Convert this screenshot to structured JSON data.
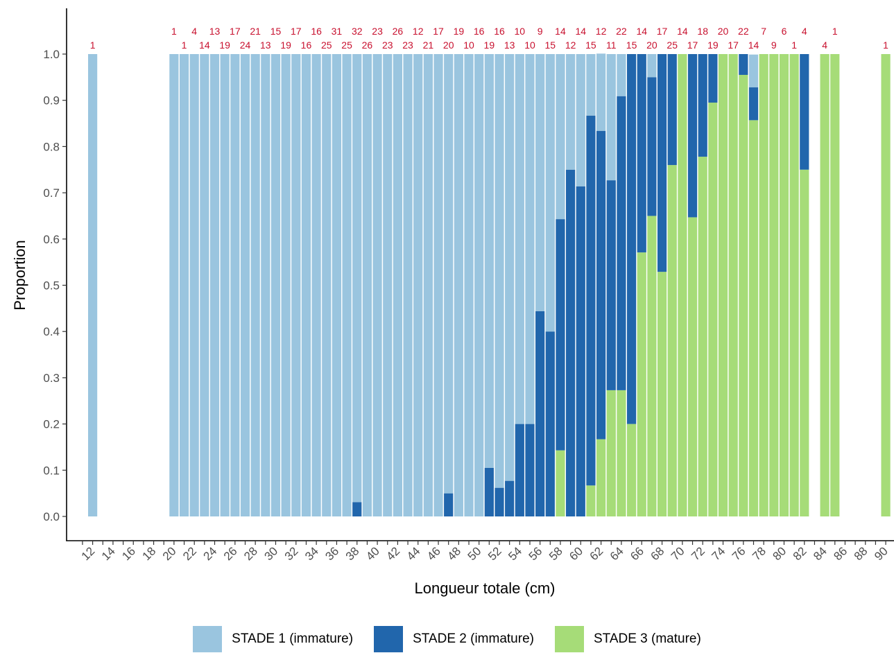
{
  "chart_data": {
    "type": "bar",
    "stacked": true,
    "xlabel": "Longueur totale (cm)",
    "ylabel": "Proportion",
    "ylim": [
      0,
      1
    ],
    "xlim": [
      11,
      90
    ],
    "y_ticks": [
      0.0,
      0.1,
      0.2,
      0.3,
      0.4,
      0.5,
      0.6,
      0.7,
      0.8,
      0.9,
      1.0
    ],
    "y_tick_labels": [
      "0.0",
      "0.1",
      "0.2",
      "0.3",
      "0.4",
      "0.5",
      "0.6",
      "0.7",
      "0.8",
      "0.9",
      "1.0"
    ],
    "x_ticks": [
      12,
      14,
      16,
      18,
      20,
      22,
      24,
      26,
      28,
      30,
      32,
      34,
      36,
      38,
      40,
      42,
      44,
      46,
      48,
      50,
      52,
      54,
      56,
      58,
      60,
      62,
      64,
      66,
      68,
      70,
      72,
      74,
      76,
      78,
      80,
      82,
      84,
      86,
      88,
      90
    ],
    "legend_position": "bottom",
    "grid": false,
    "series": [
      {
        "name": "STADE 1 (immature)",
        "color": "#9ac5df"
      },
      {
        "name": "STADE 2 (immature)",
        "color": "#2166ac"
      },
      {
        "name": "STADE 3 (mature)",
        "color": "#a6dc78"
      }
    ],
    "bars": [
      {
        "x": 12,
        "n": 1,
        "s1": 1.0,
        "s2": 0.0,
        "s3": 0.0
      },
      {
        "x": 20,
        "n": 1,
        "s1": 1.0,
        "s2": 0.0,
        "s3": 0.0
      },
      {
        "x": 21,
        "n": 1,
        "s1": 1.0,
        "s2": 0.0,
        "s3": 0.0
      },
      {
        "x": 22,
        "n": 4,
        "s1": 1.0,
        "s2": 0.0,
        "s3": 0.0
      },
      {
        "x": 23,
        "n": 14,
        "s1": 1.0,
        "s2": 0.0,
        "s3": 0.0
      },
      {
        "x": 24,
        "n": 13,
        "s1": 1.0,
        "s2": 0.0,
        "s3": 0.0
      },
      {
        "x": 25,
        "n": 19,
        "s1": 1.0,
        "s2": 0.0,
        "s3": 0.0
      },
      {
        "x": 26,
        "n": 17,
        "s1": 1.0,
        "s2": 0.0,
        "s3": 0.0
      },
      {
        "x": 27,
        "n": 24,
        "s1": 1.0,
        "s2": 0.0,
        "s3": 0.0
      },
      {
        "x": 28,
        "n": 21,
        "s1": 1.0,
        "s2": 0.0,
        "s3": 0.0
      },
      {
        "x": 29,
        "n": 13,
        "s1": 1.0,
        "s2": 0.0,
        "s3": 0.0
      },
      {
        "x": 30,
        "n": 15,
        "s1": 1.0,
        "s2": 0.0,
        "s3": 0.0
      },
      {
        "x": 31,
        "n": 19,
        "s1": 1.0,
        "s2": 0.0,
        "s3": 0.0
      },
      {
        "x": 32,
        "n": 17,
        "s1": 1.0,
        "s2": 0.0,
        "s3": 0.0
      },
      {
        "x": 33,
        "n": 16,
        "s1": 1.0,
        "s2": 0.0,
        "s3": 0.0
      },
      {
        "x": 34,
        "n": 16,
        "s1": 1.0,
        "s2": 0.0,
        "s3": 0.0
      },
      {
        "x": 35,
        "n": 25,
        "s1": 1.0,
        "s2": 0.0,
        "s3": 0.0
      },
      {
        "x": 36,
        "n": 31,
        "s1": 1.0,
        "s2": 0.0,
        "s3": 0.0
      },
      {
        "x": 37,
        "n": 25,
        "s1": 1.0,
        "s2": 0.0,
        "s3": 0.0
      },
      {
        "x": 38,
        "n": 32,
        "s1": 0.969,
        "s2": 0.031,
        "s3": 0.0
      },
      {
        "x": 39,
        "n": 26,
        "s1": 1.0,
        "s2": 0.0,
        "s3": 0.0
      },
      {
        "x": 40,
        "n": 23,
        "s1": 1.0,
        "s2": 0.0,
        "s3": 0.0
      },
      {
        "x": 41,
        "n": 23,
        "s1": 1.0,
        "s2": 0.0,
        "s3": 0.0
      },
      {
        "x": 42,
        "n": 26,
        "s1": 1.0,
        "s2": 0.0,
        "s3": 0.0
      },
      {
        "x": 43,
        "n": 23,
        "s1": 1.0,
        "s2": 0.0,
        "s3": 0.0
      },
      {
        "x": 44,
        "n": 12,
        "s1": 1.0,
        "s2": 0.0,
        "s3": 0.0
      },
      {
        "x": 45,
        "n": 21,
        "s1": 1.0,
        "s2": 0.0,
        "s3": 0.0
      },
      {
        "x": 46,
        "n": 17,
        "s1": 1.0,
        "s2": 0.0,
        "s3": 0.0
      },
      {
        "x": 47,
        "n": 20,
        "s1": 0.95,
        "s2": 0.05,
        "s3": 0.0
      },
      {
        "x": 48,
        "n": 19,
        "s1": 1.0,
        "s2": 0.0,
        "s3": 0.0
      },
      {
        "x": 49,
        "n": 10,
        "s1": 1.0,
        "s2": 0.0,
        "s3": 0.0
      },
      {
        "x": 50,
        "n": 16,
        "s1": 1.0,
        "s2": 0.0,
        "s3": 0.0
      },
      {
        "x": 51,
        "n": 19,
        "s1": 0.895,
        "s2": 0.105,
        "s3": 0.0
      },
      {
        "x": 52,
        "n": 16,
        "s1": 0.938,
        "s2": 0.062,
        "s3": 0.0
      },
      {
        "x": 53,
        "n": 13,
        "s1": 0.923,
        "s2": 0.077,
        "s3": 0.0
      },
      {
        "x": 54,
        "n": 10,
        "s1": 0.8,
        "s2": 0.2,
        "s3": 0.0
      },
      {
        "x": 55,
        "n": 10,
        "s1": 0.8,
        "s2": 0.2,
        "s3": 0.0
      },
      {
        "x": 56,
        "n": 9,
        "s1": 0.556,
        "s2": 0.444,
        "s3": 0.0
      },
      {
        "x": 57,
        "n": 15,
        "s1": 0.6,
        "s2": 0.4,
        "s3": 0.0
      },
      {
        "x": 58,
        "n": 14,
        "s1": 0.357,
        "s2": 0.5,
        "s3": 0.143
      },
      {
        "x": 59,
        "n": 12,
        "s1": 0.25,
        "s2": 0.75,
        "s3": 0.0
      },
      {
        "x": 60,
        "n": 14,
        "s1": 0.286,
        "s2": 0.714,
        "s3": 0.0
      },
      {
        "x": 61,
        "n": 15,
        "s1": 0.133,
        "s2": 0.8,
        "s3": 0.067
      },
      {
        "x": 62,
        "n": 12,
        "s1": 0.167,
        "s2": 0.667,
        "s3": 0.167
      },
      {
        "x": 63,
        "n": 11,
        "s1": 0.273,
        "s2": 0.454,
        "s3": 0.273
      },
      {
        "x": 64,
        "n": 22,
        "s1": 0.091,
        "s2": 0.636,
        "s3": 0.273
      },
      {
        "x": 65,
        "n": 15,
        "s1": 0.0,
        "s2": 0.8,
        "s3": 0.2
      },
      {
        "x": 66,
        "n": 14,
        "s1": 0.0,
        "s2": 0.429,
        "s3": 0.571
      },
      {
        "x": 67,
        "n": 20,
        "s1": 0.05,
        "s2": 0.3,
        "s3": 0.65
      },
      {
        "x": 68,
        "n": 17,
        "s1": 0.0,
        "s2": 0.471,
        "s3": 0.529
      },
      {
        "x": 69,
        "n": 25,
        "s1": 0.0,
        "s2": 0.24,
        "s3": 0.76
      },
      {
        "x": 70,
        "n": 14,
        "s1": 0.0,
        "s2": 0.0,
        "s3": 1.0
      },
      {
        "x": 71,
        "n": 17,
        "s1": 0.0,
        "s2": 0.353,
        "s3": 0.647
      },
      {
        "x": 72,
        "n": 18,
        "s1": 0.0,
        "s2": 0.222,
        "s3": 0.778
      },
      {
        "x": 73,
        "n": 19,
        "s1": 0.0,
        "s2": 0.105,
        "s3": 0.895
      },
      {
        "x": 74,
        "n": 20,
        "s1": 0.0,
        "s2": 0.0,
        "s3": 1.0
      },
      {
        "x": 75,
        "n": 17,
        "s1": 0.0,
        "s2": 0.0,
        "s3": 1.0
      },
      {
        "x": 76,
        "n": 22,
        "s1": 0.0,
        "s2": 0.045,
        "s3": 0.955
      },
      {
        "x": 77,
        "n": 14,
        "s1": 0.071,
        "s2": 0.071,
        "s3": 0.857
      },
      {
        "x": 78,
        "n": 7,
        "s1": 0.0,
        "s2": 0.0,
        "s3": 1.0
      },
      {
        "x": 79,
        "n": 9,
        "s1": 0.0,
        "s2": 0.0,
        "s3": 1.0
      },
      {
        "x": 80,
        "n": 6,
        "s1": 0.0,
        "s2": 0.0,
        "s3": 1.0
      },
      {
        "x": 81,
        "n": 1,
        "s1": 0.0,
        "s2": 0.0,
        "s3": 1.0
      },
      {
        "x": 82,
        "n": 4,
        "s1": 0.0,
        "s2": 0.25,
        "s3": 0.75
      },
      {
        "x": 84,
        "n": 4,
        "s1": 0.0,
        "s2": 0.0,
        "s3": 1.0
      },
      {
        "x": 85,
        "n": 1,
        "s1": 0.0,
        "s2": 0.0,
        "s3": 1.0
      },
      {
        "x": 90,
        "n": 1,
        "s1": 0.0,
        "s2": 0.0,
        "s3": 1.0
      }
    ]
  }
}
